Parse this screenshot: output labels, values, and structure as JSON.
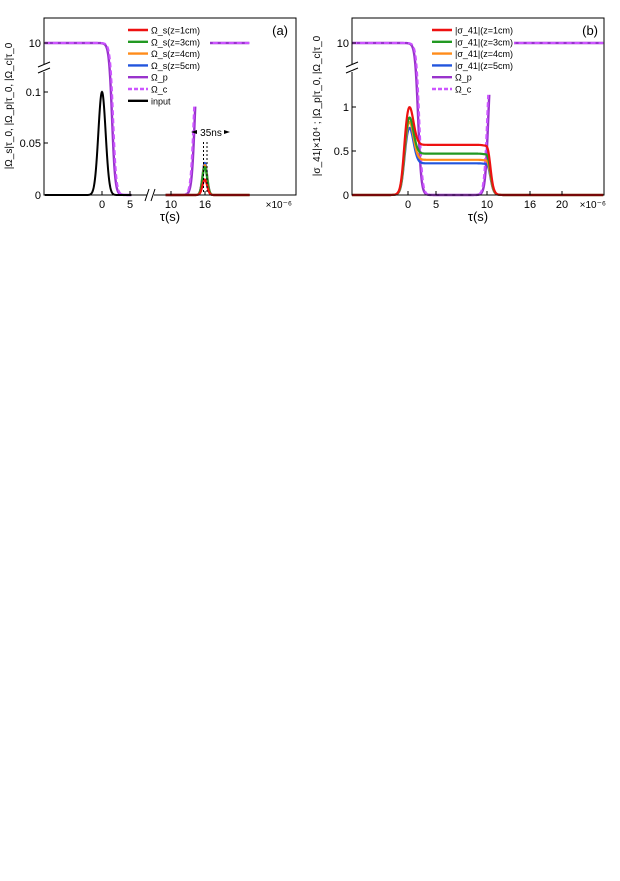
{
  "colors": {
    "z1": "#ee1111",
    "z3": "#229922",
    "z4": "#ff8c1a",
    "z5": "#2255dd",
    "pump": "#9933cc",
    "coupling": "#cc55ff",
    "input": "#000000"
  },
  "chart_data": [
    {
      "type": "line",
      "panel_tag": "(a)",
      "xlabel": "τ(s)",
      "ylabel": "|Ω_s|τ_0, |Ω_p|τ_0, |Ω_c|τ_0",
      "x_multiplier": "×10⁻⁶",
      "x_ticks": [
        "0",
        "5",
        "10",
        "16"
      ],
      "y_ticks": [
        "0",
        "0.05",
        "0.1"
      ],
      "y_top_tick": "10",
      "axis_break": "x between 5 and 10; y between 0.1 and 10",
      "annotation": "35ns",
      "ylim_lower": [
        0,
        0.12
      ],
      "legend_position": "top-center",
      "series": [
        {
          "name": "Ω_s(z=1cm)",
          "key": "z1",
          "x": [
            14.6,
            15.2,
            15.6,
            16.0,
            16.4,
            16.8,
            17.4
          ],
          "values": [
            0.0,
            0.005,
            0.011,
            0.015,
            0.011,
            0.005,
            0.0
          ]
        },
        {
          "name": "Ω_s(z=3cm)",
          "key": "z3",
          "x": [
            14.6,
            15.2,
            15.6,
            16.0,
            16.4,
            16.8,
            17.4
          ],
          "values": [
            0.0,
            0.008,
            0.019,
            0.027,
            0.019,
            0.008,
            0.0
          ]
        },
        {
          "name": "Ω_s(z=4cm)",
          "key": "z4",
          "x": [
            14.6,
            15.2,
            15.6,
            16.0,
            16.4,
            16.8,
            17.4
          ],
          "values": [
            0.0,
            0.009,
            0.021,
            0.029,
            0.021,
            0.009,
            0.0
          ]
        },
        {
          "name": "Ω_s(z=5cm)",
          "key": "z5",
          "x": [
            14.6,
            15.2,
            15.6,
            16.0,
            16.4,
            16.8,
            17.4
          ],
          "values": [
            0.0,
            0.01,
            0.023,
            0.031,
            0.023,
            0.01,
            0.0
          ]
        },
        {
          "name": "Ω_p",
          "key": "pump",
          "pulse": {
            "level": 10,
            "off": 1.8,
            "on": 14.2
          }
        },
        {
          "name": "Ω_c",
          "key": "coupling",
          "pulse": {
            "level": 10,
            "off": 2.0,
            "on": 14.0
          }
        },
        {
          "name": "input",
          "key": "input",
          "gauss": {
            "center": 0,
            "sigma": 0.65,
            "peak": 0.1
          }
        }
      ]
    },
    {
      "type": "line",
      "panel_tag": "(b)",
      "xlabel": "τ(s)",
      "ylabel": "|σ_41|×10⁴ ; |Ω_p|τ_0, |Ω_c|τ_0",
      "x_multiplier": "×10⁻⁶",
      "x_ticks": [
        "0",
        "5",
        "10",
        "16",
        "20"
      ],
      "y_ticks": [
        "0",
        "0.5",
        "1"
      ],
      "y_top_tick": "10",
      "axis_break": "y between 1 and 10",
      "ylim_lower": [
        0,
        1.2
      ],
      "legend_position": "top-center",
      "series": [
        {
          "name": "|σ_41|(z=1cm)",
          "key": "z1",
          "peak": 1.02,
          "plateau": 0.57
        },
        {
          "name": "|σ_41|(z=3cm)",
          "key": "z3",
          "peak": 0.9,
          "plateau": 0.47
        },
        {
          "name": "|σ_41|(z=4cm)",
          "key": "z4",
          "peak": 0.85,
          "plateau": 0.4
        },
        {
          "name": "|σ_41|(z=5cm)",
          "key": "z5",
          "peak": 0.78,
          "plateau": 0.36
        },
        {
          "name": "Ω_p",
          "key": "pump",
          "pulse": {
            "level": 10,
            "off": 1.8,
            "on": 14.2
          }
        },
        {
          "name": "Ω_c",
          "key": "coupling",
          "pulse": {
            "level": 10,
            "off": 2.0,
            "on": 14.0
          }
        }
      ]
    }
  ]
}
